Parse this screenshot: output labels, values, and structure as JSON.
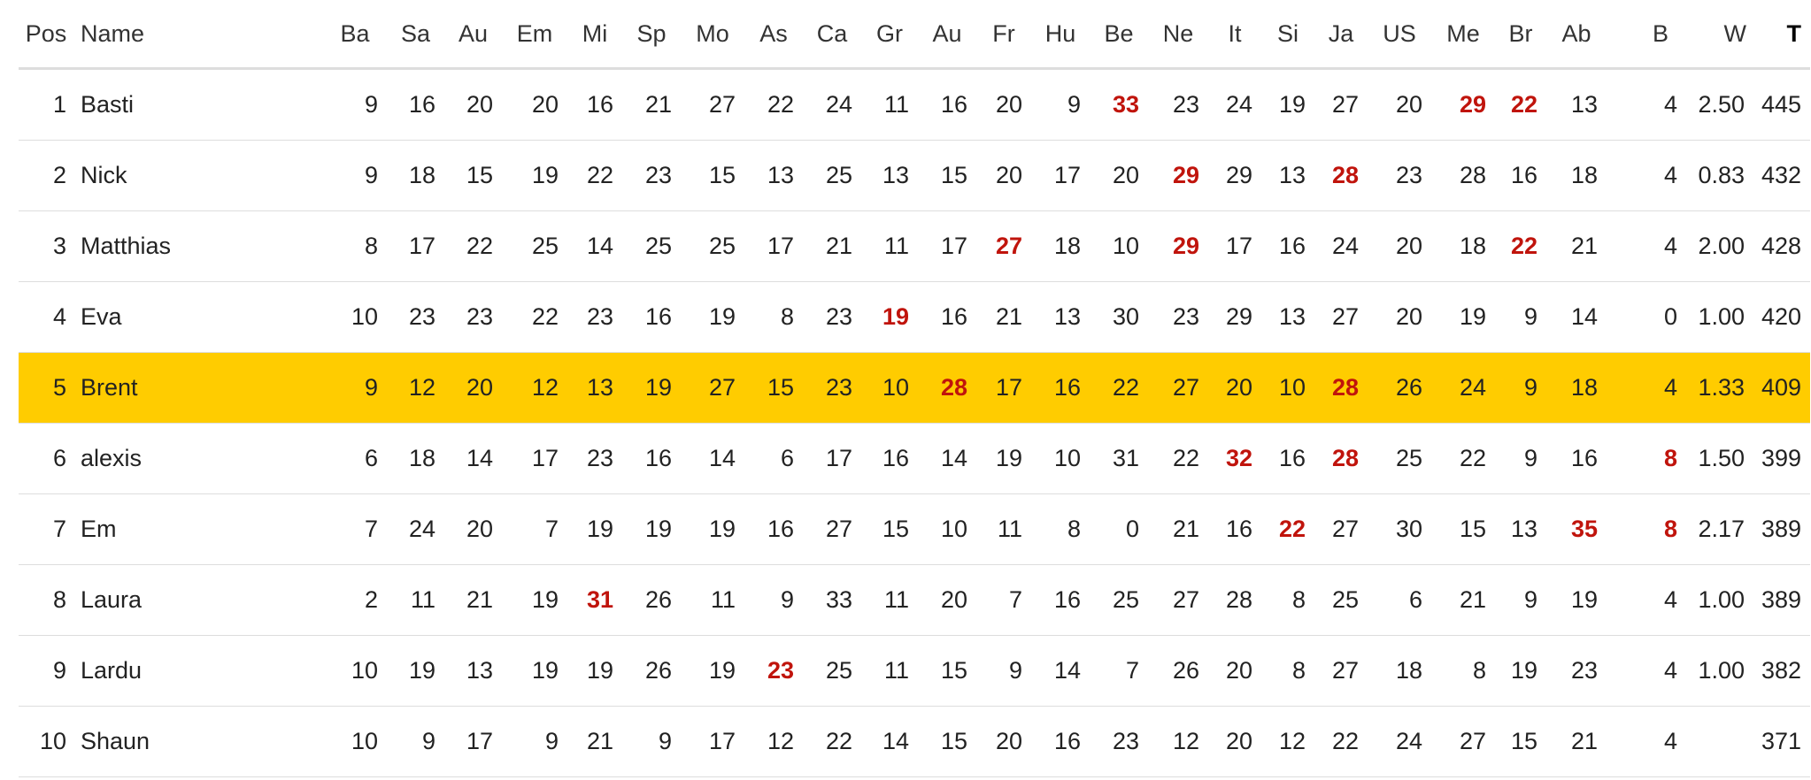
{
  "table": {
    "headers": [
      "Pos",
      "Name",
      "Ba",
      "Sa",
      "Au",
      "Em",
      "Mi",
      "Sp",
      "Mo",
      "As",
      "Ca",
      "Gr",
      "Au",
      "Fr",
      "Hu",
      "Be",
      "Ne",
      "It",
      "Si",
      "Ja",
      "US",
      "Me",
      "Br",
      "Ab",
      "B",
      "W",
      "T"
    ],
    "highlight_row": 5,
    "highlight_color": "#ffcc00",
    "best_color": "#c0140c",
    "rows": [
      {
        "pos": "1",
        "name": "Basti",
        "scores": [
          "9",
          "16",
          "20",
          "20",
          "16",
          "21",
          "27",
          "22",
          "24",
          "11",
          "16",
          "20",
          "9",
          "33",
          "23",
          "24",
          "19",
          "27",
          "20",
          "29",
          "22",
          "13"
        ],
        "best": [
          13,
          19,
          20
        ],
        "b": "4",
        "b_best": false,
        "w": "2.50",
        "t": "445"
      },
      {
        "pos": "2",
        "name": "Nick",
        "scores": [
          "9",
          "18",
          "15",
          "19",
          "22",
          "23",
          "15",
          "13",
          "25",
          "13",
          "15",
          "20",
          "17",
          "20",
          "29",
          "29",
          "13",
          "28",
          "23",
          "28",
          "16",
          "18"
        ],
        "best": [
          14,
          17
        ],
        "b": "4",
        "b_best": false,
        "w": "0.83",
        "t": "432"
      },
      {
        "pos": "3",
        "name": "Matthias",
        "scores": [
          "8",
          "17",
          "22",
          "25",
          "14",
          "25",
          "25",
          "17",
          "21",
          "11",
          "17",
          "27",
          "18",
          "10",
          "29",
          "17",
          "16",
          "24",
          "20",
          "18",
          "22",
          "21"
        ],
        "best": [
          11,
          14,
          20
        ],
        "b": "4",
        "b_best": false,
        "w": "2.00",
        "t": "428"
      },
      {
        "pos": "4",
        "name": "Eva",
        "scores": [
          "10",
          "23",
          "23",
          "22",
          "23",
          "16",
          "19",
          "8",
          "23",
          "19",
          "16",
          "21",
          "13",
          "30",
          "23",
          "29",
          "13",
          "27",
          "20",
          "19",
          "9",
          "14"
        ],
        "best": [
          9
        ],
        "b": "0",
        "b_best": false,
        "w": "1.00",
        "t": "420"
      },
      {
        "pos": "5",
        "name": "Brent",
        "scores": [
          "9",
          "12",
          "20",
          "12",
          "13",
          "19",
          "27",
          "15",
          "23",
          "10",
          "28",
          "17",
          "16",
          "22",
          "27",
          "20",
          "10",
          "28",
          "26",
          "24",
          "9",
          "18"
        ],
        "best": [
          10,
          17
        ],
        "b": "4",
        "b_best": false,
        "w": "1.33",
        "t": "409"
      },
      {
        "pos": "6",
        "name": "alexis",
        "scores": [
          "6",
          "18",
          "14",
          "17",
          "23",
          "16",
          "14",
          "6",
          "17",
          "16",
          "14",
          "19",
          "10",
          "31",
          "22",
          "32",
          "16",
          "28",
          "25",
          "22",
          "9",
          "16"
        ],
        "best": [
          15,
          17
        ],
        "b": "8",
        "b_best": true,
        "w": "1.50",
        "t": "399"
      },
      {
        "pos": "7",
        "name": "Em",
        "scores": [
          "7",
          "24",
          "20",
          "7",
          "19",
          "19",
          "19",
          "16",
          "27",
          "15",
          "10",
          "11",
          "8",
          "0",
          "21",
          "16",
          "22",
          "27",
          "30",
          "15",
          "13",
          "35"
        ],
        "best": [
          16,
          21
        ],
        "b": "8",
        "b_best": true,
        "w": "2.17",
        "t": "389"
      },
      {
        "pos": "8",
        "name": "Laura",
        "scores": [
          "2",
          "11",
          "21",
          "19",
          "31",
          "26",
          "11",
          "9",
          "33",
          "11",
          "20",
          "7",
          "16",
          "25",
          "27",
          "28",
          "8",
          "25",
          "6",
          "21",
          "9",
          "19"
        ],
        "best": [
          4
        ],
        "b": "4",
        "b_best": false,
        "w": "1.00",
        "t": "389"
      },
      {
        "pos": "9",
        "name": "Lardu",
        "scores": [
          "10",
          "19",
          "13",
          "19",
          "19",
          "26",
          "19",
          "23",
          "25",
          "11",
          "15",
          "9",
          "14",
          "7",
          "26",
          "20",
          "8",
          "27",
          "18",
          "8",
          "19",
          "23"
        ],
        "best": [
          7
        ],
        "b": "4",
        "b_best": false,
        "w": "1.00",
        "t": "382"
      },
      {
        "pos": "10",
        "name": "Shaun",
        "scores": [
          "10",
          "9",
          "17",
          "9",
          "21",
          "9",
          "17",
          "12",
          "22",
          "14",
          "15",
          "20",
          "16",
          "23",
          "12",
          "20",
          "12",
          "22",
          "24",
          "27",
          "15",
          "21"
        ],
        "best": [],
        "b": "4",
        "b_best": false,
        "w": "",
        "t": "371"
      }
    ]
  }
}
